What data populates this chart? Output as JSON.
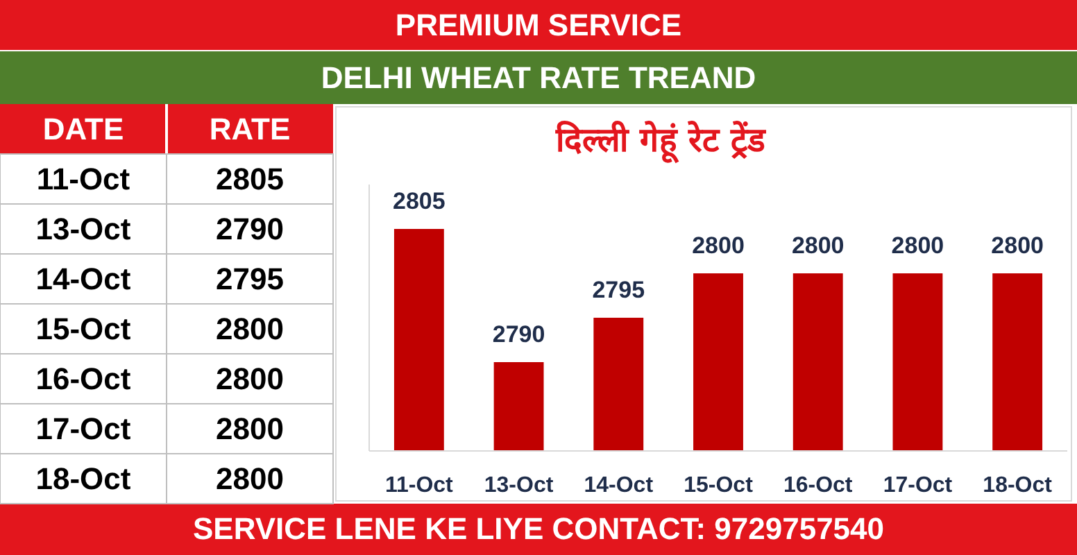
{
  "chart_data": [
    {
      "type": "other",
      "title": "PREMIUM SERVICE",
      "subtitle": "DELHI WHEAT RATE TREAND",
      "annotations": [
        "DATE",
        "RATE",
        "SERVICE LENE KE LIYE CONTACT: 9729757540"
      ],
      "categories": [
        "11-Oct",
        "13-Oct",
        "14-Oct",
        "15-Oct",
        "16-Oct",
        "17-Oct",
        "18-Oct"
      ],
      "values": [
        2805,
        2790,
        2795,
        2800,
        2800,
        2800,
        2800
      ],
      "data_labels": true
    },
    {
      "type": "bar",
      "title": "दिल्ली गेहूं रेट ट्रेंड",
      "categories": [
        "11-Oct",
        "13-Oct",
        "14-Oct",
        "15-Oct",
        "16-Oct",
        "17-Oct",
        "18-Oct"
      ],
      "values": [
        2805,
        2790,
        2795,
        2800,
        2800,
        2800,
        2800
      ],
      "color": "#c00000",
      "ylim": [
        2780,
        2810
      ],
      "tick_labels": "x",
      "data_labels": true
    }
  ]
}
